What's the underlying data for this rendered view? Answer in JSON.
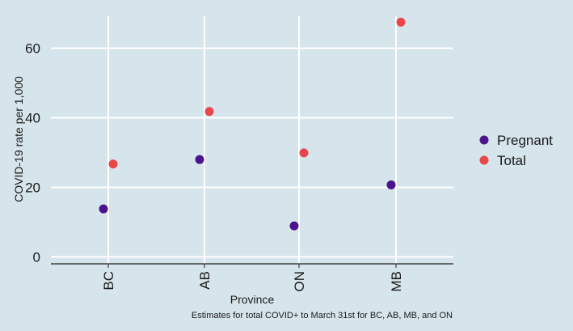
{
  "colors": {
    "panel_bg": "#d6e4eb",
    "grid": "#ffffff",
    "axis": "#222222",
    "pregnant": "#4b148c",
    "total": "#e8474a"
  },
  "chart_data": {
    "type": "scatter",
    "xlabel": "Province",
    "ylabel": "COVID-19 rate per 1,000",
    "caption": "Estimates for total COVID+ to March 31st for BC, AB, MB, and ON",
    "categories": [
      "BC",
      "AB",
      "ON",
      "MB"
    ],
    "ylim": [
      -2,
      72
    ],
    "yticks": [
      0,
      20,
      40,
      60
    ],
    "grid": true,
    "legend_position": "right",
    "series": [
      {
        "name": "Pregnant",
        "color_key": "pregnant",
        "values": [
          13.8,
          28.0,
          8.9,
          20.7
        ]
      },
      {
        "name": "Total",
        "color_key": "total",
        "values": [
          26.7,
          41.8,
          29.9,
          67.5
        ]
      }
    ]
  }
}
